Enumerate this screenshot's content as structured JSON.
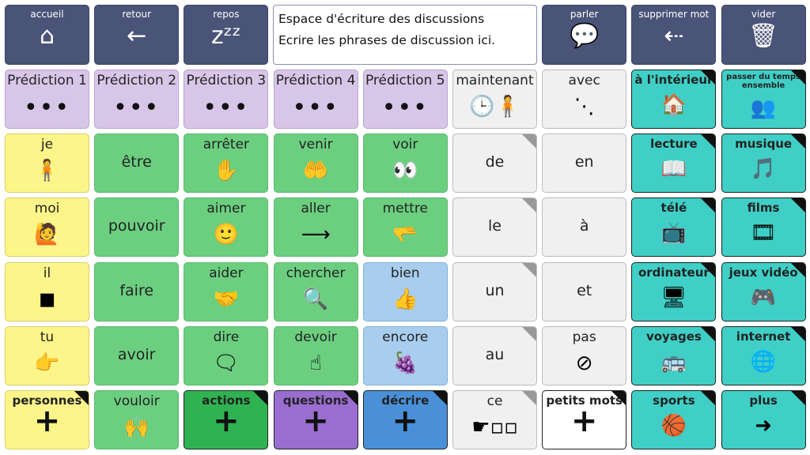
{
  "toolbar": {
    "left": [
      {
        "label": "accueil",
        "icon": "home-icon",
        "glyph": "⌂"
      },
      {
        "label": "retour",
        "icon": "arrow-left-icon",
        "glyph": "←"
      },
      {
        "label": "repos",
        "icon": "sleep-icon",
        "glyph": "zᶻᶻ"
      }
    ],
    "message": {
      "line1": "Espace d'écriture des discussions",
      "line2": "Ecrire les phrases de discussion ici."
    },
    "right": [
      {
        "label": "parler",
        "icon": "speech-bubble-icon",
        "glyph": "💬"
      },
      {
        "label": "supprimer mot",
        "icon": "delete-word-icon",
        "glyph": "⇠"
      },
      {
        "label": "vider",
        "icon": "trash-icon",
        "glyph": "🗑"
      }
    ]
  },
  "colors": {
    "nav": "#4a5478",
    "prediction": "#d8c6e8",
    "core": "#f0f0f0",
    "people": "#fdf58a",
    "verbs": "#6ccf80",
    "describe": "#a8cdee",
    "topics": "#3fcfc6"
  },
  "grid": [
    [
      {
        "label": "Prédiction 1",
        "cls": "pred",
        "glyph": "•••",
        "icon": "ellipsis-icon"
      },
      {
        "label": "Prédiction 2",
        "cls": "pred",
        "glyph": "•••",
        "icon": "ellipsis-icon"
      },
      {
        "label": "Prédiction 3",
        "cls": "pred",
        "glyph": "•••",
        "icon": "ellipsis-icon"
      },
      {
        "label": "Prédiction 4",
        "cls": "pred",
        "glyph": "•••",
        "icon": "ellipsis-icon"
      },
      {
        "label": "Prédiction 5",
        "cls": "pred",
        "glyph": "•••",
        "icon": "ellipsis-icon"
      },
      {
        "label": "maintenant",
        "cls": "grey",
        "glyph": "🕒🧍",
        "icon": "now-icon"
      },
      {
        "label": "avec",
        "cls": "grey",
        "glyph": "⋱",
        "icon": "with-icon"
      },
      {
        "label": "à l'intérieur",
        "cls": "teal",
        "glyph": "🏠",
        "icon": "house-inside-icon",
        "corner": true
      },
      {
        "label": "passer du temps ensemble",
        "cls": "teal small",
        "glyph": "👥",
        "icon": "people-together-icon",
        "corner": true
      }
    ],
    [
      {
        "label": "je",
        "cls": "yellow",
        "glyph": "🧍",
        "icon": "me-icon"
      },
      {
        "label": "être",
        "cls": "green center",
        "glyph": "",
        "icon": ""
      },
      {
        "label": "arrêter",
        "cls": "green",
        "glyph": "✋",
        "icon": "stop-hand-icon"
      },
      {
        "label": "venir",
        "cls": "green",
        "glyph": "🤲",
        "icon": "come-icon"
      },
      {
        "label": "voir",
        "cls": "green",
        "glyph": "👀",
        "icon": "eyes-icon"
      },
      {
        "label": "de",
        "cls": "grey center",
        "glyph": "",
        "icon": "",
        "gcorner": true
      },
      {
        "label": "en",
        "cls": "grey center",
        "glyph": "",
        "icon": ""
      },
      {
        "label": "lecture",
        "cls": "teal",
        "glyph": "📖",
        "icon": "book-icon",
        "corner": true
      },
      {
        "label": "musique",
        "cls": "teal",
        "glyph": "🎵",
        "icon": "singing-icon",
        "corner": true
      }
    ],
    [
      {
        "label": "moi",
        "cls": "yellow",
        "glyph": "🙋",
        "icon": "myself-icon"
      },
      {
        "label": "pouvoir",
        "cls": "green center",
        "glyph": "",
        "icon": ""
      },
      {
        "label": "aimer",
        "cls": "green",
        "glyph": "🙂",
        "icon": "like-face-icon"
      },
      {
        "label": "aller",
        "cls": "green",
        "glyph": "⟶",
        "icon": "arrow-right-icon"
      },
      {
        "label": "mettre",
        "cls": "green",
        "glyph": "🫳",
        "icon": "put-icon"
      },
      {
        "label": "le",
        "cls": "grey center",
        "glyph": "",
        "icon": "",
        "gcorner": true
      },
      {
        "label": "à",
        "cls": "grey center",
        "glyph": "",
        "icon": ""
      },
      {
        "label": "télé",
        "cls": "teal",
        "glyph": "📺",
        "icon": "tv-icon",
        "corner": true
      },
      {
        "label": "films",
        "cls": "teal",
        "glyph": "🎞",
        "icon": "film-icon",
        "corner": true
      }
    ],
    [
      {
        "label": "il",
        "cls": "yellow",
        "glyph": "◼",
        "icon": "it-square-icon"
      },
      {
        "label": "faire",
        "cls": "green center",
        "glyph": "",
        "icon": ""
      },
      {
        "label": "aider",
        "cls": "green",
        "glyph": "🤝",
        "icon": "help-icon"
      },
      {
        "label": "chercher",
        "cls": "green",
        "glyph": "🔍",
        "icon": "search-icon"
      },
      {
        "label": "bien",
        "cls": "blue",
        "glyph": "👍",
        "icon": "thumbs-up-icon"
      },
      {
        "label": "un",
        "cls": "grey center",
        "glyph": "",
        "icon": "",
        "gcorner": true
      },
      {
        "label": "et",
        "cls": "grey center",
        "glyph": "",
        "icon": ""
      },
      {
        "label": "ordinateur",
        "cls": "teal",
        "glyph": "🖥",
        "icon": "computer-icon",
        "corner": true
      },
      {
        "label": "jeux vidéo",
        "cls": "teal",
        "glyph": "🎮",
        "icon": "gamepad-icon",
        "corner": true
      }
    ],
    [
      {
        "label": "tu",
        "cls": "yellow",
        "glyph": "👉",
        "icon": "you-icon"
      },
      {
        "label": "avoir",
        "cls": "green center",
        "glyph": "",
        "icon": ""
      },
      {
        "label": "dire",
        "cls": "green",
        "glyph": "🗨",
        "icon": "say-icon"
      },
      {
        "label": "devoir",
        "cls": "green",
        "glyph": "☝",
        "icon": "must-icon"
      },
      {
        "label": "encore",
        "cls": "blue",
        "glyph": "🍇",
        "icon": "more-icon"
      },
      {
        "label": "au",
        "cls": "grey center",
        "glyph": "",
        "icon": "",
        "gcorner": true
      },
      {
        "label": "pas",
        "cls": "grey",
        "glyph": "⊘",
        "icon": "no-icon"
      },
      {
        "label": "voyages",
        "cls": "teal",
        "glyph": "🚌",
        "icon": "bus-icon",
        "corner": true
      },
      {
        "label": "internet",
        "cls": "teal",
        "glyph": "🌐",
        "icon": "network-icon",
        "corner": true
      }
    ],
    [
      {
        "label": "personnes",
        "cls": "yellow plus folder",
        "glyph": "+",
        "icon": "plus-icon",
        "corner": true
      },
      {
        "label": "vouloir",
        "cls": "green",
        "glyph": "🙌",
        "icon": "want-icon"
      },
      {
        "label": "actions",
        "cls": "dkgreen plus folder",
        "glyph": "+",
        "icon": "plus-icon",
        "corner": true
      },
      {
        "label": "questions",
        "cls": "purple plus folder",
        "glyph": "+",
        "icon": "plus-icon",
        "corner": true
      },
      {
        "label": "décrire",
        "cls": "dblue plus folder",
        "glyph": "+",
        "icon": "plus-icon",
        "corner": true
      },
      {
        "label": "ce",
        "cls": "grey",
        "glyph": "☛▫▫",
        "icon": "this-icon",
        "gcorner": true
      },
      {
        "label": "petits mots",
        "cls": "white plus folder",
        "glyph": "+",
        "icon": "plus-icon",
        "corner": true
      },
      {
        "label": "sports",
        "cls": "teal",
        "glyph": "🏀",
        "icon": "sports-icon",
        "corner": true
      },
      {
        "label": "plus",
        "cls": "teal",
        "glyph": "➜",
        "icon": "arrow-right-icon",
        "corner": true
      }
    ]
  ]
}
